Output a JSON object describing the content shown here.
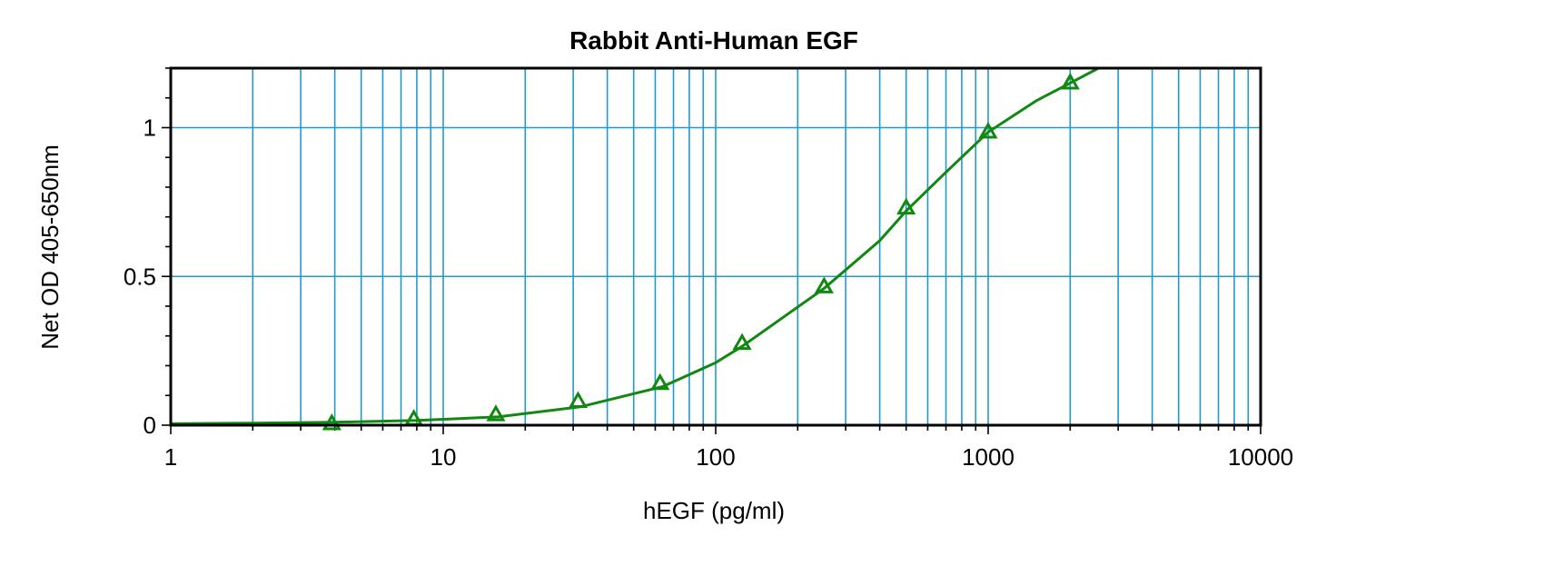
{
  "chart_data": {
    "type": "scatter",
    "title": "Rabbit Anti-Human EGF",
    "xlabel": "hEGF (pg/ml)",
    "ylabel": "Net OD 405-650nm",
    "xscale": "log",
    "xlim": [
      1,
      10000
    ],
    "ylim": [
      0,
      1.2
    ],
    "x_ticks": [
      1,
      10,
      100,
      1000,
      10000
    ],
    "x_tick_labels": [
      "1",
      "10",
      "100",
      "1000",
      "10000"
    ],
    "y_ticks": [
      0,
      0.5,
      1
    ],
    "y_tick_labels": [
      "0",
      "0.5",
      "1"
    ],
    "grid": true,
    "legend": "none",
    "series": [
      {
        "marker": "triangle-open",
        "x": [
          3.9,
          7.8,
          15.6,
          31.25,
          62.5,
          125,
          250,
          500,
          1000,
          2000
        ],
        "y": [
          0.0,
          0.015,
          0.03,
          0.075,
          0.135,
          0.27,
          0.46,
          0.725,
          0.98,
          1.145
        ]
      }
    ],
    "fit_curve": {
      "x": [
        1,
        2,
        4,
        8,
        16,
        32,
        64,
        100,
        125,
        250,
        400,
        500,
        700,
        1000,
        1500,
        2000,
        2540
      ],
      "y": [
        0.005,
        0.007,
        0.01,
        0.016,
        0.028,
        0.062,
        0.13,
        0.21,
        0.265,
        0.46,
        0.62,
        0.72,
        0.85,
        0.985,
        1.09,
        1.15,
        1.2
      ]
    },
    "colors": {
      "series": "#118811",
      "grid": "#2299cc",
      "frame": "#000000"
    }
  }
}
